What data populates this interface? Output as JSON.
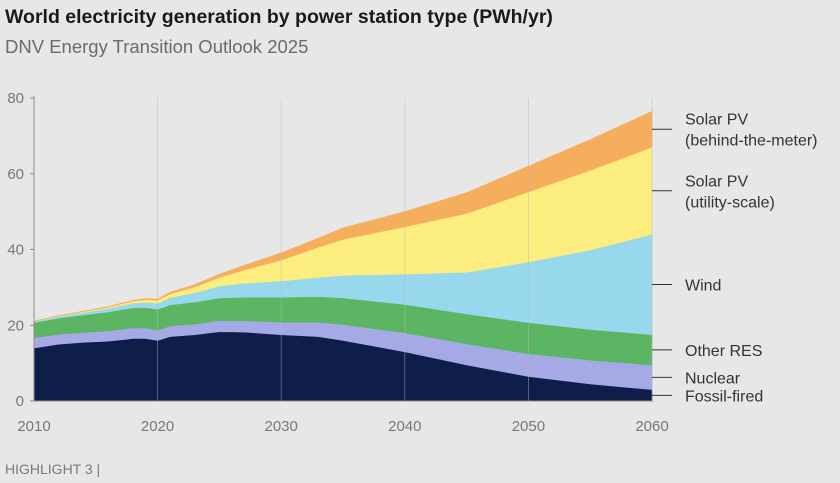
{
  "header": {
    "title": "World electricity generation by power station type (PWh/yr)",
    "subtitle": "DNV Energy Transition Outlook 2025"
  },
  "footer": {
    "text": "HIGHLIGHT 3 |"
  },
  "colors": {
    "background": "#e7e7e7",
    "Fossil-fired": "#0f1d4a",
    "Nuclear": "#a5a9e6",
    "Other RES": "#5cb562",
    "Wind": "#98d8ec",
    "Solar PV (utility-scale)": "#fbee7e",
    "Solar PV (behind-the-meter)": "#f5ae5c"
  },
  "chart_data": {
    "type": "area",
    "stacked": true,
    "title": "World electricity generation by power station type (PWh/yr)",
    "subtitle": "DNV Energy Transition Outlook 2025",
    "xlabel": "",
    "ylabel": "",
    "xlim": [
      2010,
      2060
    ],
    "ylim": [
      0,
      80
    ],
    "xticks": [
      "2010",
      "2020",
      "2030",
      "2040",
      "2050",
      "2060"
    ],
    "yticks": [
      "0",
      "20",
      "40",
      "60",
      "80"
    ],
    "grid": "vertical",
    "legend": "right-side labels",
    "x": [
      2010,
      2012,
      2014,
      2016,
      2018,
      2019,
      2020,
      2021,
      2023,
      2025,
      2027,
      2030,
      2033,
      2035,
      2040,
      2045,
      2050,
      2055,
      2060
    ],
    "series": [
      {
        "name": "Fossil-fired",
        "values": [
          14,
          15,
          15.5,
          15.8,
          16.5,
          16.5,
          16,
          17,
          17.5,
          18.3,
          18.2,
          17.5,
          17,
          16,
          13,
          9.5,
          6.5,
          4.5,
          3
        ]
      },
      {
        "name": "Nuclear",
        "values": [
          2.7,
          2.6,
          2.6,
          2.7,
          2.8,
          2.8,
          2.7,
          2.8,
          2.8,
          2.9,
          3,
          3.3,
          3.8,
          4.2,
          5,
          5.6,
          6,
          6.3,
          6.5
        ]
      },
      {
        "name": "Other RES",
        "values": [
          4,
          4.3,
          4.6,
          5,
          5.3,
          5.4,
          5.5,
          5.6,
          5.8,
          6,
          6.2,
          6.6,
          6.8,
          7,
          7.5,
          7.9,
          8.2,
          8.1,
          8
        ]
      },
      {
        "name": "Wind",
        "values": [
          0.35,
          0.5,
          0.7,
          0.95,
          1.25,
          1.4,
          1.6,
          1.9,
          2.5,
          3.2,
          3.7,
          4.3,
          5,
          6,
          8,
          11,
          16,
          21,
          26.5
        ]
      },
      {
        "name": "Solar PV (utility-scale)",
        "values": [
          0.03,
          0.1,
          0.2,
          0.3,
          0.55,
          0.65,
          0.8,
          1,
          1.5,
          2.2,
          3.5,
          5.5,
          8,
          9.5,
          12.5,
          15.5,
          18.5,
          21,
          23
        ]
      },
      {
        "name": "Solar PV (behind-the-meter)",
        "values": [
          0.02,
          0.05,
          0.1,
          0.15,
          0.2,
          0.25,
          0.3,
          0.4,
          0.6,
          0.9,
          1.2,
          1.9,
          2.4,
          3,
          4,
          5.5,
          6.8,
          8.1,
          9.5
        ]
      }
    ],
    "labels": [
      {
        "series": "Solar PV (behind-the-meter)",
        "lines": [
          "Solar PV",
          "(behind-the-meter)"
        ]
      },
      {
        "series": "Solar PV (utility-scale)",
        "lines": [
          "Solar PV",
          "(utility-scale)"
        ]
      },
      {
        "series": "Wind",
        "lines": [
          "Wind"
        ]
      },
      {
        "series": "Other RES",
        "lines": [
          "Other RES"
        ]
      },
      {
        "series": "Nuclear",
        "lines": [
          "Nuclear"
        ]
      },
      {
        "series": "Fossil-fired",
        "lines": [
          "Fossil-fired"
        ]
      }
    ]
  }
}
